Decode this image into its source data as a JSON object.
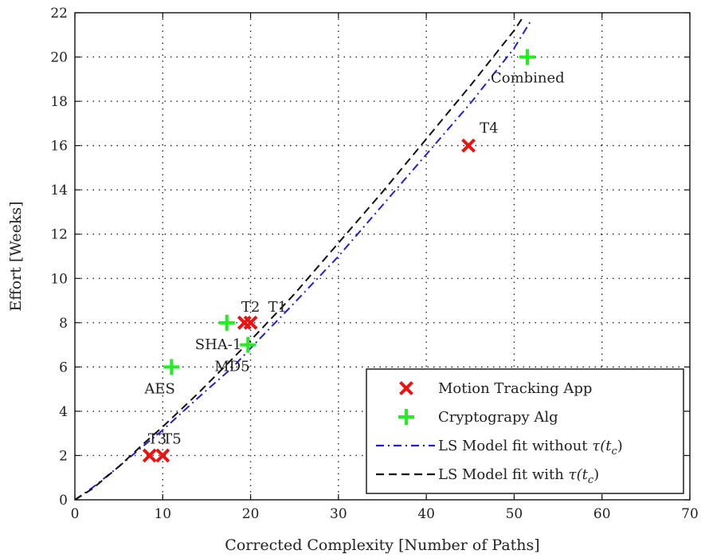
{
  "chart_data": {
    "type": "scatter",
    "xlabel": "Corrected Complexity [Number of Paths]",
    "ylabel": "Effort [Weeks]",
    "xlim": [
      0,
      70
    ],
    "ylim": [
      0,
      22
    ],
    "xticks": [
      0,
      10,
      20,
      30,
      40,
      50,
      60,
      70
    ],
    "yticks": [
      0,
      2,
      4,
      6,
      8,
      10,
      12,
      14,
      16,
      18,
      20,
      22
    ],
    "grid": true,
    "legend_position": "bottom-right",
    "series": [
      {
        "name": "Motion Tracking App",
        "marker": "x",
        "color": "#ee1111",
        "points": [
          {
            "label": "T1",
            "x": 20,
            "y": 8
          },
          {
            "label": "T2",
            "x": 19.3,
            "y": 8
          },
          {
            "label": "T3",
            "x": 8.5,
            "y": 2
          },
          {
            "label": "T4",
            "x": 44.8,
            "y": 16
          },
          {
            "label": "T5",
            "x": 10,
            "y": 2
          }
        ]
      },
      {
        "name": "Cryptograpy Alg",
        "marker": "+",
        "color": "#22ee22",
        "points": [
          {
            "label": "AES",
            "x": 11,
            "y": 6
          },
          {
            "label": "SHA-1",
            "x": 17.3,
            "y": 8
          },
          {
            "label": "MD5",
            "x": 19.7,
            "y": 7
          },
          {
            "label": "Combined",
            "x": 51.5,
            "y": 20
          }
        ]
      },
      {
        "name": "LS Model fit without τ(tc)",
        "marker": "dashdot-line",
        "color": "#1f1fd6",
        "x": [
          0,
          2,
          5,
          8,
          10,
          14,
          18,
          20,
          25,
          30,
          35,
          40,
          45,
          50,
          52
        ],
        "y": [
          0,
          0.55,
          1.5,
          2.5,
          3.15,
          4.6,
          6.0,
          6.85,
          8.9,
          11.0,
          13.3,
          15.6,
          17.9,
          20.4,
          21.7
        ]
      },
      {
        "name": "LS Model fit with τ(tc)",
        "marker": "dashed-line",
        "color": "#111111",
        "x": [
          0,
          2,
          5,
          8,
          10,
          14,
          18,
          20,
          25,
          30,
          35,
          40,
          45,
          50,
          51
        ],
        "y": [
          0,
          0.5,
          1.5,
          2.6,
          3.3,
          4.8,
          6.4,
          7.2,
          9.3,
          11.6,
          13.9,
          16.3,
          18.7,
          21.2,
          21.8
        ]
      }
    ],
    "legend": [
      {
        "text": "Motion Tracking App",
        "marker": "x",
        "color": "#ee1111"
      },
      {
        "text": "Cryptograpy Alg",
        "marker": "+",
        "color": "#22ee22"
      },
      {
        "text": "LS Model fit without ",
        "math": "τ(t",
        "sub": "c",
        "close": ")",
        "marker": "dashdot-line",
        "color": "#1f1fd6"
      },
      {
        "text": "LS Model fit with ",
        "math": "τ(t",
        "sub": "c",
        "close": ")",
        "marker": "dashed-line",
        "color": "#111111"
      }
    ]
  }
}
